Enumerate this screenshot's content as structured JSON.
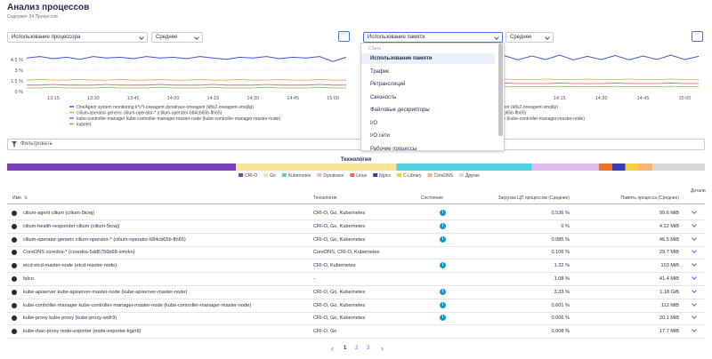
{
  "header": {
    "title": "Анализ процессов",
    "subtitle": "Содержит 24 Процессов"
  },
  "left_panel": {
    "metric": "Использование процессора",
    "aggregation": "Среднее",
    "chart_data": {
      "type": "line",
      "x": [
        "13:05",
        "13:10",
        "13:15",
        "13:20",
        "13:25",
        "13:30",
        "13:35",
        "13:40",
        "13:45",
        "13:50",
        "13:55",
        "14:00",
        "14:05",
        "14:10",
        "14:15",
        "14:20",
        "14:25",
        "14:30",
        "14:35",
        "14:40",
        "14:45",
        "14:50",
        "14:55",
        "15:00",
        "15:05"
      ],
      "xticks": [
        "13:15",
        "13:30",
        "13:45",
        "14:00",
        "14:15",
        "14:30",
        "14:45",
        "15:00"
      ],
      "ylim": [
        0,
        5.6
      ],
      "yticks": [
        {
          "value": 0,
          "label": "0 %"
        },
        {
          "value": 1.5,
          "label": "1.5 %"
        },
        {
          "value": 3,
          "label": "3 %"
        },
        {
          "value": 4.5,
          "label": "4.5 %"
        }
      ],
      "grid": true,
      "series": [
        {
          "name": "OneAgent system monitoring k*s*t-oneagent dynatrace-oneagent (k8s2-oneagent-vmq6p)",
          "color": "#4b55c9",
          "values": [
            4.7,
            4.9,
            4.6,
            4.8,
            4.5,
            4.9,
            4.7,
            4.8,
            4.6,
            4.9,
            4.7,
            4.8,
            4.6,
            4.9,
            4.7,
            4.5,
            4.8,
            4.7,
            4.9,
            4.6,
            4.8,
            4.7,
            4.9,
            4.2,
            4.8
          ]
        },
        {
          "name": "cilium-operator-generic cilium-operator-* (cilium-operator-684cb65b-ffn65)",
          "color": "#f3a14d",
          "values": [
            1.6,
            1.7,
            1.6,
            1.6,
            1.7,
            1.6,
            1.6,
            1.7,
            1.6,
            1.6,
            1.7,
            1.6,
            1.6,
            1.7,
            1.6,
            1.6,
            1.7,
            1.6,
            1.6,
            1.7,
            1.6,
            1.6,
            1.7,
            1.6,
            1.6
          ]
        },
        {
          "name": "kube-controller-manager kube-controller-manager-master-node (kube-controller-manager-master-node)",
          "color": "#e25555",
          "values": [
            0.9,
            0.9,
            1.0,
            0.9,
            0.9,
            0.9,
            1.0,
            0.9,
            0.9,
            0.9,
            1.0,
            0.9,
            0.9,
            0.9,
            1.0,
            0.9,
            0.9,
            0.9,
            1.0,
            0.9,
            0.9,
            0.9,
            1.0,
            0.9,
            0.9
          ]
        },
        {
          "name": "kubelet",
          "color": "#7cc144",
          "values": [
            0.5,
            0.5,
            0.6,
            0.5,
            0.5,
            0.5,
            0.6,
            0.5,
            0.5,
            0.5,
            0.6,
            0.5,
            0.5,
            0.5,
            0.6,
            0.5,
            0.5,
            0.5,
            0.6,
            0.5,
            0.5,
            0.5,
            0.6,
            0.5,
            0.5
          ]
        }
      ]
    }
  },
  "right_panel": {
    "metric": "Использование памяти",
    "aggregation": "Среднее",
    "chart_data": {
      "type": "line",
      "x": [
        "13:05",
        "13:10",
        "13:15",
        "13:20",
        "13:25",
        "13:30",
        "13:35",
        "13:40",
        "13:45",
        "13:50",
        "13:55",
        "14:00",
        "14:05",
        "14:10",
        "14:15",
        "14:20",
        "14:25",
        "14:30",
        "14:35",
        "14:40",
        "14:45",
        "14:50",
        "14:55",
        "15:00",
        "15:05"
      ],
      "xticks": [
        "14:15",
        "14:30",
        "14:45",
        "15:00"
      ],
      "ylim": [
        0,
        100
      ],
      "series": [
        {
          "name": "OneAgent system monitoring k*s*t-oneagent dynatrace-oneagent (k8s2-oneagent-vmq6p)",
          "color": "#4b55c9",
          "values": [
            88,
            80,
            90,
            79,
            89,
            80,
            91,
            79,
            88,
            80,
            90,
            79,
            89,
            80,
            91,
            79,
            88,
            80,
            90,
            79,
            89,
            80,
            91,
            80,
            88
          ]
        },
        {
          "name": "cilium-operator-generic cilium-operator-* (cilium-operator-684cb65b-ffn65)",
          "color": "#f3a14d",
          "values": [
            30,
            31,
            30,
            30,
            31,
            30,
            30,
            31,
            30,
            30,
            31,
            30,
            30,
            31,
            30,
            30,
            31,
            30,
            30,
            31,
            30,
            30,
            31,
            30,
            30
          ]
        },
        {
          "name": "kube-controller-manager kube-controller-manager-master-node (kube-controller-manager-master-node)",
          "color": "#e25555",
          "values": [
            20,
            20,
            21,
            20,
            20,
            20,
            21,
            20,
            20,
            20,
            21,
            20,
            20,
            20,
            21,
            20,
            20,
            20,
            21,
            20,
            20,
            20,
            21,
            20,
            20
          ]
        },
        {
          "name": "kubelet",
          "color": "#7cc144",
          "values": [
            12,
            12,
            13,
            12,
            12,
            12,
            13,
            12,
            12,
            12,
            13,
            12,
            12,
            12,
            13,
            12,
            12,
            12,
            13,
            12,
            12,
            12,
            13,
            12,
            12
          ]
        }
      ]
    }
  },
  "menu": {
    "group": "Сбить",
    "options": [
      "Использование памяти",
      "Трафик",
      "Ретрансляций",
      "Связность",
      "Файловые дескрипторы",
      "I/O",
      "I/O сети",
      "Рабочие процессы"
    ]
  },
  "filter": {
    "placeholder": "Фильтровать"
  },
  "technology": {
    "chart_data": {
      "type": "stacked-bar",
      "title": "Технология",
      "series": [
        {
          "name": "CRI-O",
          "color": "#7b3fb5",
          "values": [
            32.8
          ]
        },
        {
          "name": "Go",
          "color": "#f8e597",
          "values": [
            23
          ]
        },
        {
          "name": "Kubernetes",
          "color": "#4fd2de",
          "values": [
            19.4
          ]
        },
        {
          "name": "Dynatrace",
          "color": "#dcbcf0",
          "values": [
            9.6
          ]
        },
        {
          "name": "Linux",
          "color": "#f0702a",
          "values": [
            1.9
          ]
        },
        {
          "name": "Nginx",
          "color": "#3a3db8",
          "values": [
            1.9
          ]
        },
        {
          "name": "C-Library",
          "color": "#f7d13a",
          "values": [
            1.9
          ]
        },
        {
          "name": "CoreDNS",
          "color": "#f8b57a",
          "values": [
            2
          ]
        },
        {
          "name": "Другие",
          "color": "#d8d8d8",
          "values": [
            7.5
          ]
        }
      ]
    }
  },
  "table": {
    "columns": [
      "Имя",
      "Технология",
      "Состояние",
      "Загрузка ЦП процессом (Среднее)",
      "Память процесса (Среднее)",
      "Детали"
    ],
    "rows": [
      [
        "cilium-agent cilium (cilium-5tcwj)",
        "CRI-O, Go, Kubernetes",
        "info",
        "0.536 %",
        "99.6 MiB"
      ],
      [
        "cilium-health-responder cilium (cilium-5tcwj)",
        "CRI-O, Go, Kubernetes",
        "info",
        "0 %",
        "4.22 MiB"
      ],
      [
        "cilium-operator-generic cilium-operator-* (cilium-operator-684cb65b-ffn65)",
        "CRI-O, Go, Kubernetes",
        "info",
        "0.085 %",
        "46.5 MiB"
      ],
      [
        "CoreDNS coredns-* (coredns-5dd5756b68-xmvkn)",
        "CoreDNS, CRI-O, Kubernetes",
        null,
        "0.106 %",
        "29.7 MiB"
      ],
      [
        "etcd etcd-master-node (etcd-master-node)",
        "CRI-O, Kubernetes",
        "info",
        "1.32 %",
        "103 MiB"
      ],
      [
        "falco",
        "-",
        null,
        "1.08 %",
        "41.4 MiB"
      ],
      [
        "kube-apiserver kube-apiserver-master-node (kube-apiserver-master-node)",
        "CRI-O, Go, Kubernetes",
        "info",
        "3.33 %",
        "1.18 GiB"
      ],
      [
        "kube-controller-manager kube-controller-manager-master-node (kube-controller-manager-master-node)",
        "CRI-O, Go, Kubernetes",
        "info",
        "0.601 %",
        "112 MiB"
      ],
      [
        "kube-proxy kube-proxy (kube-proxy-wxfr9)",
        "CRI-O, Go, Kubernetes",
        "info",
        "0.006 %",
        "20.1 MiB"
      ],
      [
        "kube-rbac-proxy node-exporter (node-exporter-kgzr9)",
        "CRI-O, Go",
        null,
        "0.008 %",
        "17.7 MiB"
      ]
    ]
  },
  "pagination": {
    "pages": [
      "1",
      "2",
      "3"
    ],
    "current": "1"
  }
}
